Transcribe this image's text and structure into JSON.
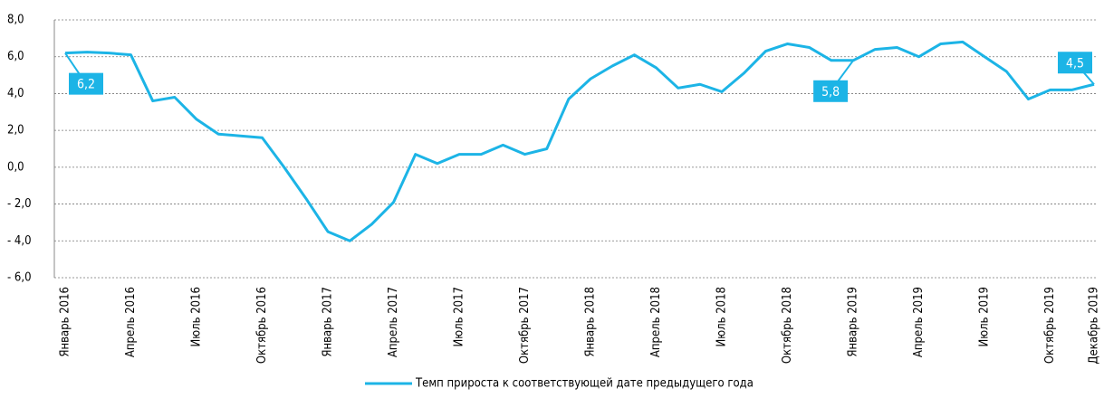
{
  "chart_data": {
    "type": "line",
    "categories": [
      "Январь 2016",
      null,
      null,
      "Апрель 2016",
      null,
      null,
      "Июль 2016",
      null,
      null,
      "Октябрь 2016",
      null,
      null,
      "Январь 2017",
      null,
      null,
      "Апрель 2017",
      null,
      null,
      "Июль 2017",
      null,
      null,
      "Октябрь 2017",
      null,
      null,
      "Январь 2018",
      null,
      null,
      "Апрель 2018",
      null,
      null,
      "Июль 2018",
      null,
      null,
      "Октябрь 2018",
      null,
      null,
      "Январь 2019",
      null,
      null,
      "Апрель 2019",
      null,
      null,
      "Июль 2019",
      null,
      null,
      "Октябрь 2019",
      null,
      "Декабрь 2019"
    ],
    "series": [
      {
        "name": "Темп прироста к соответствующей дате предыдущего года",
        "color": "#1cb4e6",
        "values": [
          6.2,
          6.25,
          6.2,
          6.1,
          3.6,
          3.8,
          2.6,
          1.8,
          1.7,
          1.6,
          0.0,
          -1.7,
          -3.5,
          -4.0,
          -3.1,
          -1.9,
          0.7,
          0.2,
          0.7,
          0.7,
          1.2,
          0.7,
          1.0,
          3.7,
          4.8,
          5.5,
          6.1,
          5.4,
          4.3,
          4.5,
          4.1,
          5.1,
          6.3,
          6.7,
          6.5,
          5.8,
          5.8,
          6.4,
          6.5,
          6.0,
          6.7,
          6.8,
          6.0,
          5.2,
          3.7,
          4.2,
          4.2,
          4.5
        ],
        "value_labels": [
          "6,2",
          null,
          null,
          null,
          null,
          null,
          null,
          null,
          null,
          null,
          null,
          null,
          null,
          null,
          null,
          null,
          null,
          null,
          null,
          null,
          null,
          null,
          null,
          null,
          null,
          null,
          null,
          null,
          null,
          null,
          null,
          null,
          null,
          null,
          null,
          null,
          "5,8",
          null,
          null,
          null,
          null,
          null,
          null,
          null,
          null,
          null,
          null,
          "4,5"
        ]
      }
    ],
    "ylim": [
      -6,
      8
    ],
    "yticks": [
      {
        "value": -6,
        "label": "- 6,0"
      },
      {
        "value": -4,
        "label": "- 4,0"
      },
      {
        "value": -2,
        "label": "- 2,0"
      },
      {
        "value": 0,
        "label": "0,0"
      },
      {
        "value": 2,
        "label": "2,0"
      },
      {
        "value": 4,
        "label": "4,0"
      },
      {
        "value": 6,
        "label": "6,0"
      },
      {
        "value": 8,
        "label": "8,0"
      }
    ],
    "grid": true,
    "legend": "bottom"
  }
}
